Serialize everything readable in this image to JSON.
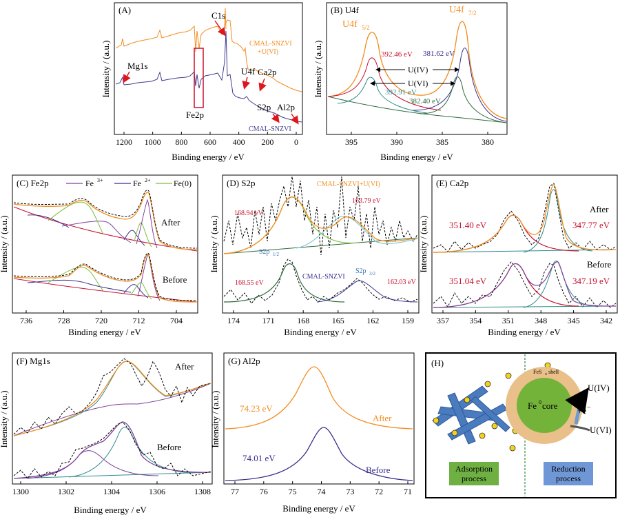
{
  "colors": {
    "orange": "#F28C1E",
    "purple": "#3F3C8F",
    "red": "#C8102E",
    "darkgreen": "#2D6A3E",
    "green": "#7CBF3A",
    "teal": "#2E8B8B",
    "navy": "#3A2F8C",
    "black": "#000000"
  },
  "panels": [
    {
      "id": "A",
      "label": "(A)",
      "xlabel": "Binding energy / eV",
      "ylabel": "Intensity / (a.u.)",
      "xticks": [
        "1200",
        "1000",
        "800",
        "600",
        "400",
        "200",
        "0"
      ],
      "annotations": [
        "C1s",
        "Mg1s",
        "U4f",
        "Ca2p",
        "Fe2p",
        "S2p",
        "Al2p"
      ],
      "series": [
        "CMAL-SNZVI",
        "+U(VI)",
        "CMAL-SNZVI"
      ]
    },
    {
      "id": "B",
      "label": "(B) U4f",
      "xlabel": "Binding energy / eV",
      "ylabel": "Intensity / (a.u.)",
      "xticks": [
        "395",
        "390",
        "385",
        "380"
      ],
      "annotations": [
        "U4f",
        "5/2",
        "U4f",
        "7/2",
        "392.46 eV",
        "381.62 eV",
        "U(IV)",
        "U(VI)",
        "392.91 eV",
        "382.40 eV"
      ]
    },
    {
      "id": "C",
      "label": "(C) Fe2p",
      "xlabel": "Binding energy / eV",
      "ylabel": "Intensity / (a.u.)",
      "xticks": [
        "736",
        "728",
        "720",
        "712",
        "704"
      ],
      "legend": [
        "Fe",
        "3+",
        "Fe",
        "2+",
        "Fe(0)"
      ],
      "annotations": [
        "After",
        "Before"
      ]
    },
    {
      "id": "D",
      "label": "(D) S2p",
      "xlabel": "Binding energy / eV",
      "ylabel": "Intensity / (a.u.)",
      "xticks": [
        "174",
        "171",
        "168",
        "165",
        "162",
        "159"
      ],
      "annotations": [
        "CMAL-SNZVI+U(VI)",
        "168.94 eV",
        "163.79 eV",
        "S2p",
        "1/2",
        "CMAL-SNZVI",
        "S2p",
        "3/2",
        "168.55 eV",
        "162.03 eV"
      ]
    },
    {
      "id": "E",
      "label": "(E) Ca2p",
      "xlabel": "Binding energy / eV",
      "ylabel": "Intensity / (a.u.)",
      "xticks": [
        "357",
        "354",
        "351",
        "348",
        "345",
        "342"
      ],
      "annotations": [
        "After",
        "351.40 eV",
        "347.77 eV",
        "Before",
        "351.04 eV",
        "347.19 eV"
      ]
    },
    {
      "id": "F",
      "label": "(F) Mg1s",
      "xlabel": "Binding energy / eV",
      "ylabel": "Intensity / (a.u.)",
      "xticks": [
        "1300",
        "1302",
        "1304",
        "1306",
        "1308"
      ],
      "annotations": [
        "After",
        "Before"
      ]
    },
    {
      "id": "G",
      "label": "(G) Al2p",
      "xlabel": "Binding energy / eV",
      "ylabel": "Intensity / (a.u.)",
      "xticks": [
        "77",
        "76",
        "75",
        "74",
        "73",
        "72",
        "71"
      ],
      "annotations": [
        "74.23 eV",
        "After",
        "74.01 eV",
        "Before"
      ]
    },
    {
      "id": "H",
      "label": "(H)",
      "annotations": [
        "FeS",
        "x",
        "shell",
        "Fe",
        "0",
        "core",
        "U(IV)",
        "+e",
        "−",
        "U(VI)",
        "Adsorption",
        "process",
        "Reduction",
        "process"
      ]
    }
  ],
  "chart_data": [
    {
      "type": "line",
      "panel": "A",
      "xlim": [
        1300,
        -50
      ],
      "x_reversed": true,
      "series": [
        {
          "name": "CMAL-SNZVI +U(VI)",
          "peaks_eV": [
            1303,
            711,
            532,
            400,
            347,
            163,
            74
          ]
        },
        {
          "name": "CMAL-SNZVI",
          "peaks_eV": [
            1303,
            711,
            532,
            347,
            163,
            74
          ]
        }
      ]
    },
    {
      "type": "line",
      "panel": "B",
      "xlim": [
        398,
        376
      ],
      "x_reversed": true,
      "peaks_eV": {
        "U(IV) U4f5/2": 392.46,
        "U(IV) U4f7/2": 381.62,
        "U(VI) U4f5/2": 392.91,
        "U(VI) U4f7/2": 382.4
      }
    },
    {
      "type": "line",
      "panel": "C",
      "xlim": [
        740,
        702
      ],
      "x_reversed": true,
      "series": [
        {
          "name": "Fe3+"
        },
        {
          "name": "Fe2+"
        },
        {
          "name": "Fe(0)"
        }
      ]
    },
    {
      "type": "line",
      "panel": "D",
      "xlim": [
        175,
        157.5
      ],
      "x_reversed": true,
      "peaks_eV": {
        "After S2p1/2": 168.94,
        "After S2p3/2": 163.79,
        "Before S2p1/2": 168.55,
        "Before S2p3/2": 162.03
      }
    },
    {
      "type": "line",
      "panel": "E",
      "xlim": [
        359,
        342
      ],
      "x_reversed": true,
      "peaks_eV": {
        "After 1": 351.4,
        "After 2": 347.77,
        "Before 1": 351.04,
        "Before 2": 347.19
      }
    },
    {
      "type": "line",
      "panel": "F",
      "xlim": [
        1300,
        1308
      ],
      "x_reversed": false,
      "peaks_eV": {
        "After": 1304.8,
        "Before": 1304.5
      }
    },
    {
      "type": "line",
      "panel": "G",
      "xlim": [
        77.5,
        71
      ],
      "x_reversed": true,
      "peaks_eV": {
        "After": 74.23,
        "Before": 74.01
      }
    }
  ]
}
